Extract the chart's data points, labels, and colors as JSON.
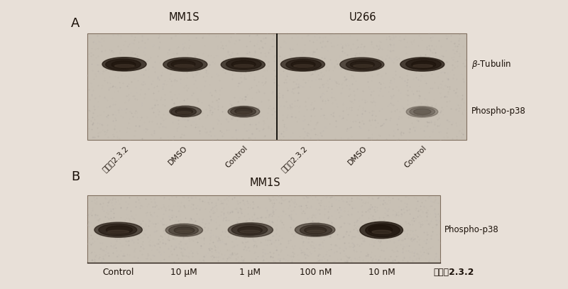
{
  "figure_bg": "#e8e0d8",
  "panel_bg": "#c8c0b4",
  "band_dark": "#1a1008",
  "panel_A": {
    "label": "A",
    "title_mm1s": "MM1S",
    "title_u266": "U266",
    "xlabels": [
      "化合物2.3.2",
      "DMSO",
      "Control",
      "化合物2.3.2",
      "DMSO",
      "Control"
    ],
    "tubulin_intensities": [
      0.88,
      0.82,
      0.85,
      0.84,
      0.8,
      0.88
    ],
    "phospho_intensities": [
      0.0,
      0.68,
      0.58,
      0.0,
      0.0,
      0.32
    ],
    "row_labels": [
      "β-Tubulin",
      "Phospho-p38"
    ]
  },
  "panel_B": {
    "label": "B",
    "title": "MM1S",
    "xlabels": [
      "Control",
      "10 μM",
      "1 μM",
      "100 nM",
      "10 nM"
    ],
    "xlabel_extra": "化合物2.3.2",
    "phospho_intensities": [
      0.78,
      0.52,
      0.68,
      0.62,
      0.92
    ]
  }
}
